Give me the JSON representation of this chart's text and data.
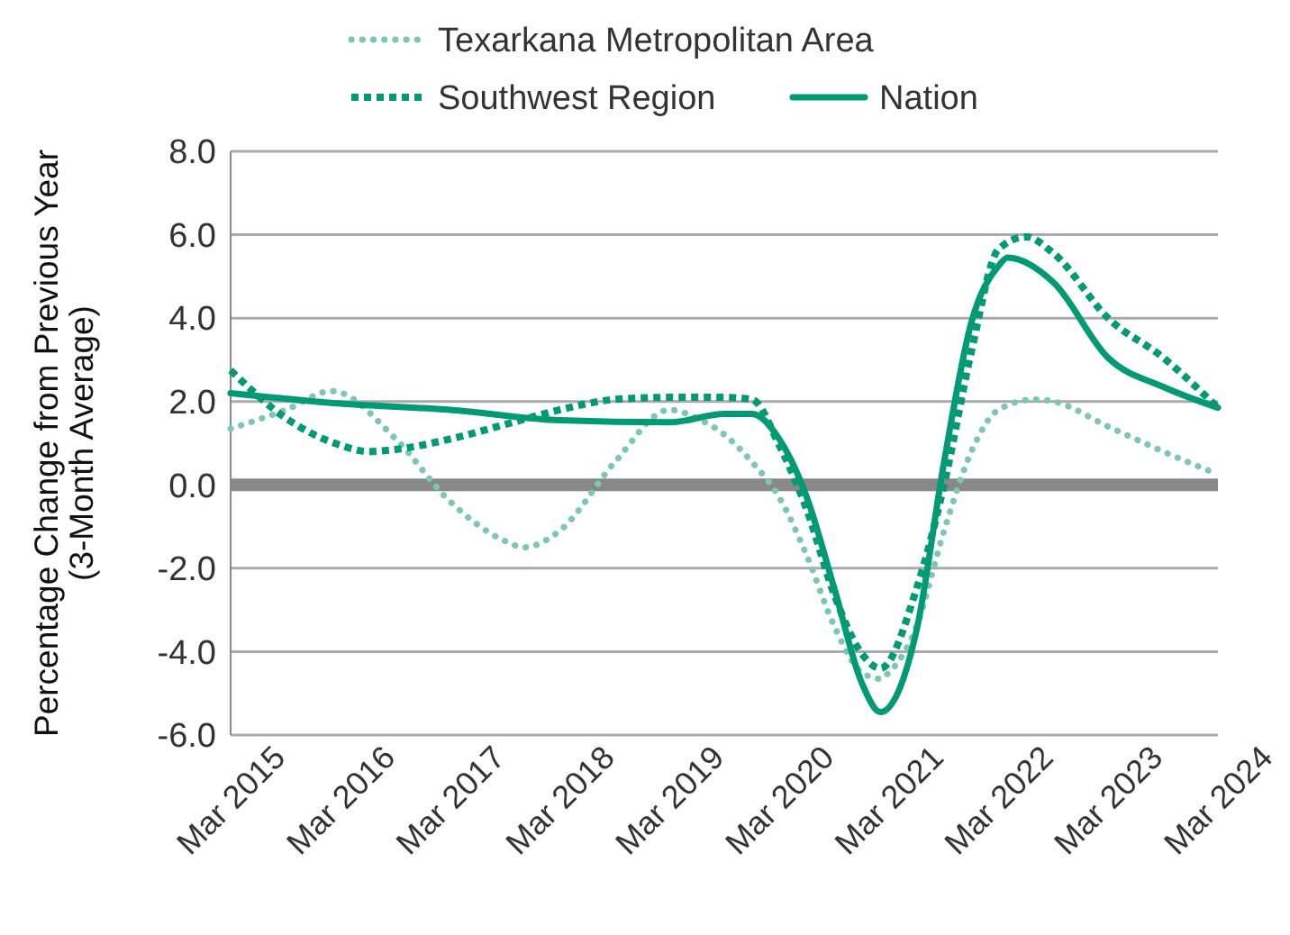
{
  "chart_data": {
    "type": "line",
    "ylabel": "Percentage Change from Previous Year\n(3-Month Average)",
    "xlim": [
      "2015-03",
      "2024-03"
    ],
    "xticks": [
      {
        "value": "2015-03",
        "label": "Mar 2015"
      },
      {
        "value": "2016-03",
        "label": "Mar 2016"
      },
      {
        "value": "2017-03",
        "label": "Mar 2017"
      },
      {
        "value": "2018-03",
        "label": "Mar 2018"
      },
      {
        "value": "2019-03",
        "label": "Mar 2019"
      },
      {
        "value": "2020-03",
        "label": "Mar 2020"
      },
      {
        "value": "2021-03",
        "label": "Mar 2021"
      },
      {
        "value": "2022-03",
        "label": "Mar 2022"
      },
      {
        "value": "2023-03",
        "label": "Mar 2023"
      },
      {
        "value": "2024-03",
        "label": "Mar 2024"
      }
    ],
    "ylim": [
      -6,
      8
    ],
    "yticks": [
      {
        "value": -6,
        "label": "-6.0"
      },
      {
        "value": -4,
        "label": "-4.0"
      },
      {
        "value": -2,
        "label": "-2.0"
      },
      {
        "value": 0,
        "label": "0.0"
      },
      {
        "value": 2,
        "label": "2.0"
      },
      {
        "value": 4,
        "label": "4.0"
      },
      {
        "value": 6,
        "label": "6.0"
      },
      {
        "value": 8,
        "label": "8.0"
      }
    ],
    "grid": "y",
    "legend": "top",
    "marker": "none",
    "ref_lines": [
      {
        "axis": "y",
        "value": 0,
        "color": "#888888"
      }
    ],
    "series": [
      {
        "name": "Texarkana Metropolitan Area",
        "color": "#7cc7b0",
        "line_style": "dotted",
        "x": [
          "2015-03",
          "2015-09",
          "2016-02",
          "2016-09",
          "2017-03",
          "2017-09",
          "2017-11",
          "2018-03",
          "2018-09",
          "2019-03",
          "2019-06",
          "2019-09",
          "2019-12",
          "2020-03",
          "2020-06",
          "2020-09",
          "2020-12",
          "2021-02",
          "2021-03",
          "2021-06",
          "2021-09",
          "2021-12",
          "2022-03",
          "2022-07",
          "2022-09",
          "2023-03",
          "2023-09",
          "2024-03"
        ],
        "values": [
          1.35,
          1.8,
          2.25,
          1.1,
          -0.4,
          -1.35,
          -1.5,
          -1.1,
          0.55,
          1.8,
          1.6,
          1.2,
          0.55,
          -0.3,
          -1.7,
          -3.4,
          -4.5,
          -4.65,
          -4.5,
          -3.4,
          -1.1,
          0.8,
          1.8,
          2.05,
          2.0,
          1.4,
          0.8,
          0.25
        ]
      },
      {
        "name": "Southwest Region",
        "color": "#009a75",
        "line_style": "dashed",
        "x": [
          "2015-03",
          "2015-09",
          "2016-03",
          "2016-06",
          "2016-09",
          "2017-03",
          "2017-09",
          "2018-03",
          "2018-09",
          "2019-03",
          "2019-09",
          "2019-12",
          "2020-03",
          "2020-06",
          "2020-09",
          "2020-12",
          "2021-02",
          "2021-06",
          "2021-09",
          "2021-12",
          "2022-03",
          "2022-06",
          "2022-09",
          "2023-03",
          "2023-09",
          "2024-03"
        ],
        "values": [
          2.75,
          1.6,
          0.95,
          0.8,
          0.85,
          1.1,
          1.45,
          1.8,
          2.05,
          2.1,
          2.1,
          2.05,
          0.95,
          -0.6,
          -2.65,
          -4.05,
          -4.4,
          -2.5,
          0,
          3.2,
          5.65,
          5.95,
          5.55,
          4.0,
          3.05,
          1.85
        ]
      },
      {
        "name": "Nation",
        "color": "#009a75",
        "line_style": "solid",
        "x": [
          "2015-03",
          "2016-03",
          "2017-03",
          "2018-03",
          "2019-03",
          "2019-09",
          "2019-12",
          "2020-03",
          "2020-06",
          "2020-09",
          "2020-12",
          "2021-02",
          "2021-06",
          "2021-09",
          "2021-12",
          "2022-03",
          "2022-04",
          "2022-09",
          "2023-03",
          "2023-09",
          "2024-03"
        ],
        "values": [
          2.2,
          1.95,
          1.8,
          1.55,
          1.5,
          1.7,
          1.7,
          1.1,
          -0.3,
          -2.5,
          -4.75,
          -5.45,
          -3.5,
          0.55,
          3.9,
          5.25,
          5.45,
          4.85,
          3.05,
          2.35,
          1.85
        ]
      }
    ]
  }
}
